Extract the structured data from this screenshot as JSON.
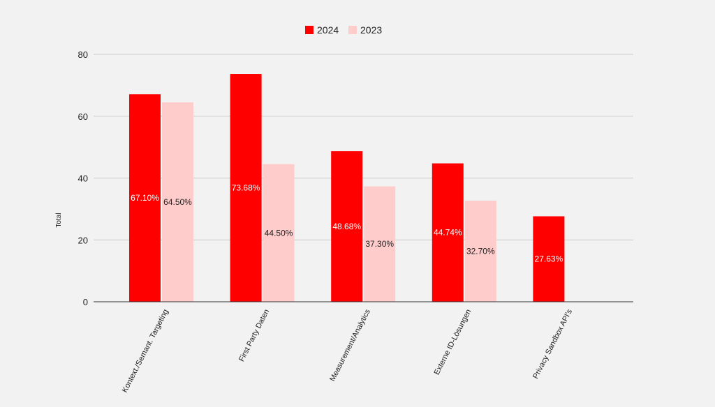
{
  "chart_data": {
    "type": "bar",
    "title": "",
    "xlabel": "",
    "ylabel": "Total",
    "ylim": [
      0,
      80
    ],
    "yticks": [
      0,
      20,
      40,
      60,
      80
    ],
    "grid": true,
    "legend_position": "top-center",
    "categories": [
      "Kontext./Semant. Targeting",
      "First Party Daten",
      "Measurement/Analytics",
      "Externe ID-Lösungen",
      "Privacy Sandbox API's"
    ],
    "series": [
      {
        "name": "2024",
        "color": "#ff0000",
        "label_color": "#ffffff",
        "values": [
          67.1,
          73.68,
          48.68,
          44.74,
          27.63
        ],
        "labels": [
          "67.10%",
          "73.68%",
          "48.68%",
          "44.74%",
          "27.63%"
        ]
      },
      {
        "name": "2023",
        "color": "#ffcccc",
        "label_color": "#222222",
        "values": [
          64.5,
          44.5,
          37.3,
          32.7,
          null
        ],
        "labels": [
          "64.50%",
          "44.50%",
          "37.30%",
          "32.70%",
          ""
        ]
      }
    ]
  }
}
